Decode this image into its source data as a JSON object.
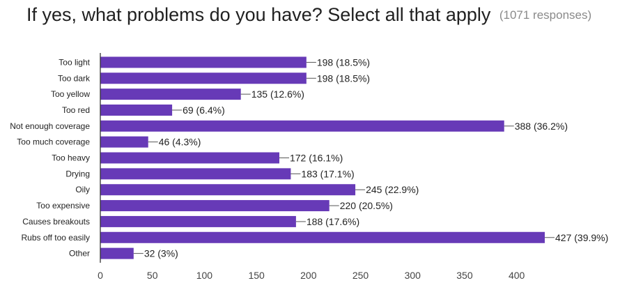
{
  "header": {
    "title": "If yes, what problems do you have? Select all that apply",
    "responses": "(1071 responses)"
  },
  "colors": {
    "bar": "#673ab7",
    "axis": "#333333",
    "leader": "#555555"
  },
  "chart_data": {
    "type": "bar",
    "orientation": "horizontal",
    "categories": [
      "Too light",
      "Too dark",
      "Too yellow",
      "Too red",
      "Not enough coverage",
      "Too much coverage",
      "Too heavy",
      "Drying",
      "Oily",
      "Too expensive",
      "Causes breakouts",
      "Rubs off too easily",
      "Other"
    ],
    "values": [
      198,
      198,
      135,
      69,
      388,
      46,
      172,
      183,
      245,
      220,
      188,
      427,
      32
    ],
    "value_labels": [
      "198 (18.5%)",
      "198 (18.5%)",
      "135 (12.6%)",
      "69 (6.4%)",
      "388 (36.2%)",
      "46 (4.3%)",
      "172 (16.1%)",
      "183 (17.1%)",
      "245 (22.9%)",
      "220 (20.5%)",
      "188 (17.6%)",
      "427 (39.9%)",
      "32 (3%)"
    ],
    "ticks": [
      0,
      50,
      100,
      150,
      200,
      250,
      300,
      350,
      400
    ],
    "xlim": [
      0,
      427
    ],
    "grid": false
  }
}
